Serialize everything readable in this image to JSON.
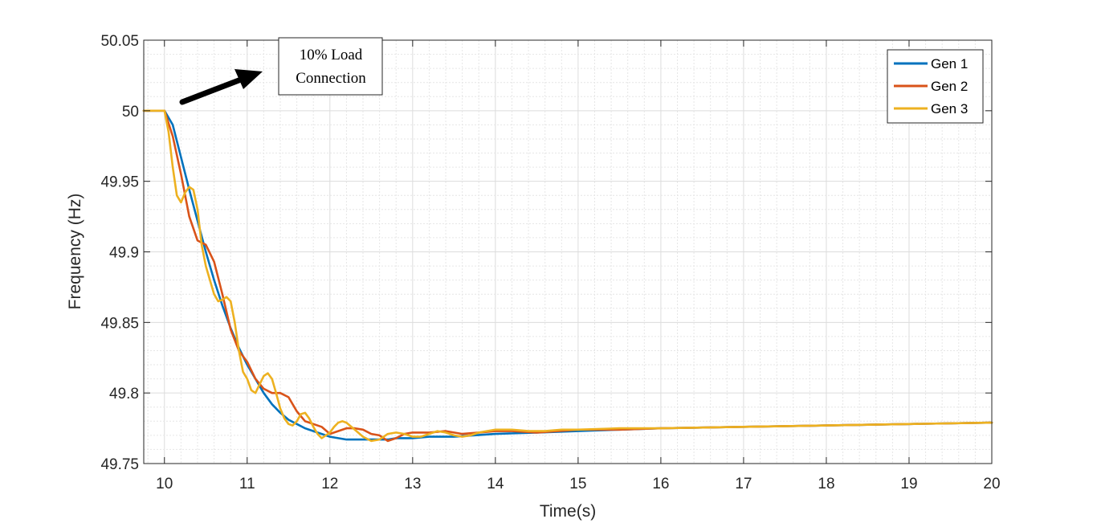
{
  "chart_data": {
    "type": "line",
    "xlabel": "Time(s)",
    "ylabel": "Frequency (Hz)",
    "xlim": [
      9.75,
      20
    ],
    "ylim": [
      49.75,
      50.05
    ],
    "xticks": [
      10,
      11,
      12,
      13,
      14,
      15,
      16,
      17,
      18,
      19,
      20
    ],
    "yticks": [
      49.75,
      49.8,
      49.85,
      49.9,
      49.95,
      50,
      50.05
    ],
    "ytick_labels": [
      "49.75",
      "49.8",
      "49.85",
      "49.9",
      "49.95",
      "50",
      "50.05"
    ],
    "grid": true,
    "minor_grid": true,
    "legend_position": "top-right",
    "annotation": {
      "lines": [
        "10% Load",
        "Connection"
      ],
      "arrow": true
    },
    "series": [
      {
        "name": "Gen 1",
        "color": "#0072BD",
        "x": [
          9.75,
          10.0,
          10.1,
          10.2,
          10.3,
          10.4,
          10.5,
          10.6,
          10.7,
          10.8,
          10.9,
          11.0,
          11.1,
          11.2,
          11.3,
          11.4,
          11.5,
          11.6,
          11.7,
          11.8,
          11.9,
          12.0,
          12.1,
          12.2,
          12.3,
          12.4,
          12.5,
          12.6,
          12.7,
          12.8,
          12.9,
          13.0,
          13.2,
          13.5,
          14.0,
          14.5,
          15.0,
          15.5,
          16.0,
          17.0,
          18.0,
          19.0,
          20.0
        ],
        "y": [
          50.0,
          50.0,
          49.99,
          49.967,
          49.944,
          49.922,
          49.9,
          49.88,
          49.862,
          49.846,
          49.832,
          49.82,
          49.81,
          49.8,
          49.792,
          49.786,
          49.781,
          49.778,
          49.775,
          49.773,
          49.771,
          49.769,
          49.768,
          49.767,
          49.767,
          49.767,
          49.767,
          49.767,
          49.767,
          49.768,
          49.768,
          49.768,
          49.769,
          49.769,
          49.771,
          49.772,
          49.773,
          49.774,
          49.775,
          49.776,
          49.777,
          49.778,
          49.779
        ]
      },
      {
        "name": "Gen 2",
        "color": "#D95319",
        "x": [
          9.75,
          10.0,
          10.1,
          10.2,
          10.3,
          10.4,
          10.5,
          10.6,
          10.7,
          10.8,
          10.9,
          11.0,
          11.1,
          11.2,
          11.3,
          11.4,
          11.5,
          11.6,
          11.7,
          11.8,
          11.9,
          12.0,
          12.1,
          12.2,
          12.3,
          12.4,
          12.5,
          12.6,
          12.7,
          12.8,
          12.9,
          13.0,
          13.2,
          13.4,
          13.6,
          13.8,
          14.0,
          14.2,
          14.5,
          15.0,
          15.5,
          16.0,
          17.0,
          18.0,
          19.0,
          20.0
        ],
        "y": [
          50.0,
          50.0,
          49.982,
          49.955,
          49.925,
          49.908,
          49.905,
          49.893,
          49.87,
          49.845,
          49.83,
          49.822,
          49.81,
          49.803,
          49.8,
          49.8,
          49.797,
          49.787,
          49.78,
          49.778,
          49.776,
          49.771,
          49.773,
          49.775,
          49.775,
          49.774,
          49.771,
          49.77,
          49.766,
          49.768,
          49.771,
          49.772,
          49.772,
          49.773,
          49.771,
          49.772,
          49.773,
          49.773,
          49.772,
          49.774,
          49.774,
          49.775,
          49.776,
          49.777,
          49.778,
          49.779
        ]
      },
      {
        "name": "Gen 3",
        "color": "#EDB120",
        "x": [
          9.75,
          10.0,
          10.05,
          10.1,
          10.15,
          10.2,
          10.25,
          10.3,
          10.35,
          10.4,
          10.45,
          10.5,
          10.55,
          10.6,
          10.65,
          10.7,
          10.75,
          10.8,
          10.85,
          10.9,
          10.95,
          11.0,
          11.05,
          11.1,
          11.15,
          11.2,
          11.25,
          11.3,
          11.35,
          11.4,
          11.45,
          11.5,
          11.55,
          11.6,
          11.65,
          11.7,
          11.75,
          11.8,
          11.85,
          11.9,
          11.95,
          12.0,
          12.05,
          12.1,
          12.15,
          12.2,
          12.3,
          12.4,
          12.5,
          12.6,
          12.7,
          12.8,
          12.9,
          13.0,
          13.1,
          13.2,
          13.3,
          13.4,
          13.5,
          13.6,
          13.7,
          13.8,
          14.0,
          14.2,
          14.4,
          14.6,
          14.8,
          15.0,
          15.5,
          16.0,
          17.0,
          18.0,
          19.0,
          20.0
        ],
        "y": [
          50.0,
          50.0,
          49.985,
          49.96,
          49.94,
          49.935,
          49.942,
          49.946,
          49.944,
          49.93,
          49.905,
          49.89,
          49.88,
          49.87,
          49.865,
          49.866,
          49.868,
          49.865,
          49.85,
          49.83,
          49.815,
          49.81,
          49.802,
          49.8,
          49.806,
          49.812,
          49.814,
          49.81,
          49.8,
          49.789,
          49.782,
          49.778,
          49.777,
          49.78,
          49.785,
          49.786,
          49.782,
          49.776,
          49.771,
          49.768,
          49.77,
          49.772,
          49.776,
          49.779,
          49.78,
          49.779,
          49.774,
          49.769,
          49.766,
          49.767,
          49.771,
          49.772,
          49.771,
          49.769,
          49.769,
          49.771,
          49.773,
          49.772,
          49.77,
          49.769,
          49.77,
          49.772,
          49.774,
          49.774,
          49.773,
          49.773,
          49.774,
          49.774,
          49.775,
          49.775,
          49.776,
          49.777,
          49.778,
          49.779
        ]
      }
    ]
  }
}
